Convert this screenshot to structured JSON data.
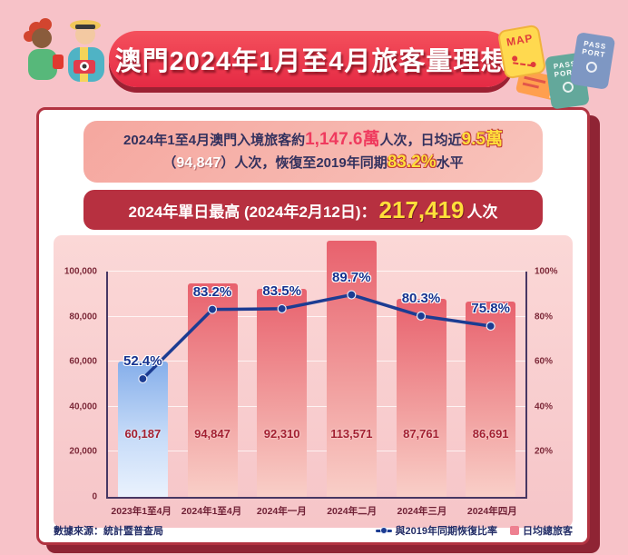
{
  "header": {
    "title": "澳門2024年1月至4月旅客量理想",
    "icons": {
      "map": "MAP",
      "passport_line1": "PASS",
      "passport_line2": "PORT"
    }
  },
  "summary": {
    "l1a": "2024年1至4月澳門入境旅客約",
    "l1b": "1,147.6萬",
    "l1c": "人次，日均近",
    "l1d": "9.5萬",
    "l2a": "（",
    "l2b": "94,847",
    "l2c": "）人次，恢復至2019年同期",
    "l2d": "83.2%",
    "l2e": "水平"
  },
  "record": {
    "label": "2024年單日最高 (2024年2月12日)：",
    "value": "217,419",
    "unit": "人次"
  },
  "chart_data": {
    "type": "bar+line",
    "title": "澳門2024年1月至4月旅客量理想",
    "categories": [
      "2023年1至4月",
      "2024年1至4月",
      "2024年一月",
      "2024年二月",
      "2024年三月",
      "2024年四月"
    ],
    "series": [
      {
        "name": "日均總旅客",
        "type": "bar",
        "axis": "left",
        "values": [
          60187,
          94847,
          92310,
          113571,
          87761,
          86691
        ],
        "labels": [
          "60,187",
          "94,847",
          "92,310",
          "113,571",
          "87,761",
          "86,691"
        ],
        "first_bar_color": "#9dbdf0",
        "other_bar_color": "#e8616d"
      },
      {
        "name": "與2019年同期恢復比率",
        "type": "line",
        "axis": "right",
        "values": [
          52.4,
          83.2,
          83.5,
          89.7,
          80.3,
          75.8
        ],
        "labels": [
          "52.4%",
          "83.2%",
          "83.5%",
          "89.7%",
          "80.3%",
          "75.8%"
        ],
        "color": "#1c3c92"
      }
    ],
    "left_axis": {
      "max": 100000,
      "ticks": [
        "100,000",
        "80,000",
        "60,000",
        "40,000",
        "20,000",
        "0"
      ]
    },
    "right_axis": {
      "max": 100,
      "ticks": [
        "100%",
        "80%",
        "60%",
        "40%",
        "20%"
      ]
    },
    "grid": true,
    "legend_position": "bottom-right"
  },
  "footer": {
    "source": "數據來源：統計暨普查局"
  },
  "colors": {
    "page_background": "#f7c2c8",
    "title_red": "#ee3a4f",
    "card_border": "#b23341",
    "record_bar_red": "#b73040",
    "highlight_yellow": "#ffdf3a",
    "highlight_red": "#ef3a5e",
    "line_navy": "#1c3c92",
    "bar_red": "#e8616d",
    "bar_blue": "#9dbdf0"
  }
}
